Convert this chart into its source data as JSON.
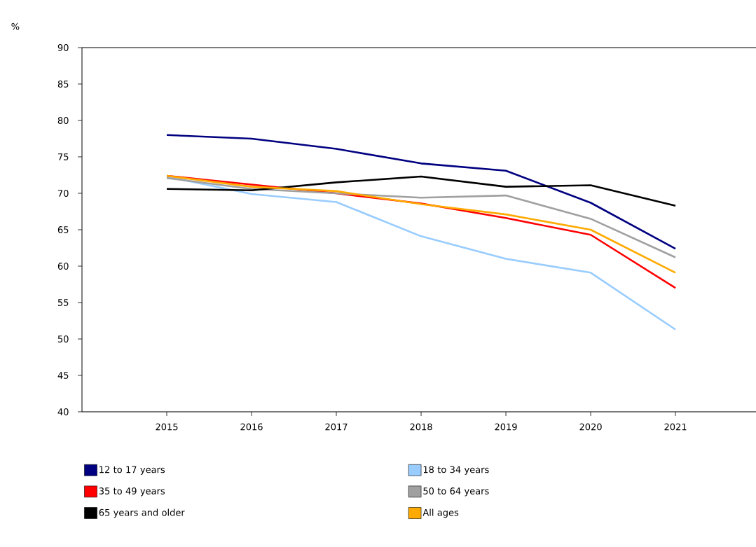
{
  "chart_data": {
    "type": "line",
    "ylabel": "%",
    "categories": [
      "2015",
      "2016",
      "2017",
      "2018",
      "2019",
      "2020",
      "2021"
    ],
    "series": [
      {
        "name": "12 to 17 years",
        "color": "#000080",
        "values": [
          78.0,
          77.5,
          76.1,
          74.1,
          73.1,
          68.7,
          62.4
        ]
      },
      {
        "name": "18 to 34 years",
        "color": "#99ccff",
        "values": [
          72.3,
          69.9,
          68.8,
          64.1,
          61.0,
          59.1,
          51.3
        ]
      },
      {
        "name": "35 to 49 years",
        "color": "#ff0000",
        "values": [
          72.4,
          71.2,
          70.0,
          68.6,
          66.6,
          64.3,
          57.0
        ]
      },
      {
        "name": "50 to 64 years",
        "color": "#a0a0a0",
        "values": [
          72.1,
          70.6,
          70.0,
          69.4,
          69.7,
          66.5,
          61.2
        ]
      },
      {
        "name": "65 years and older",
        "color": "#000000",
        "values": [
          70.6,
          70.4,
          71.5,
          72.3,
          70.9,
          71.1,
          68.3
        ]
      },
      {
        "name": "All ages",
        "color": "#ffaa00",
        "values": [
          72.4,
          70.9,
          70.3,
          68.5,
          67.1,
          65.0,
          59.1
        ]
      }
    ],
    "ylim": [
      40,
      90
    ],
    "yticks": [
      40,
      45,
      50,
      55,
      60,
      65,
      70,
      75,
      80,
      85,
      90
    ],
    "grid": false,
    "legend": "bottom",
    "line_style": "solid",
    "marker": "none"
  }
}
